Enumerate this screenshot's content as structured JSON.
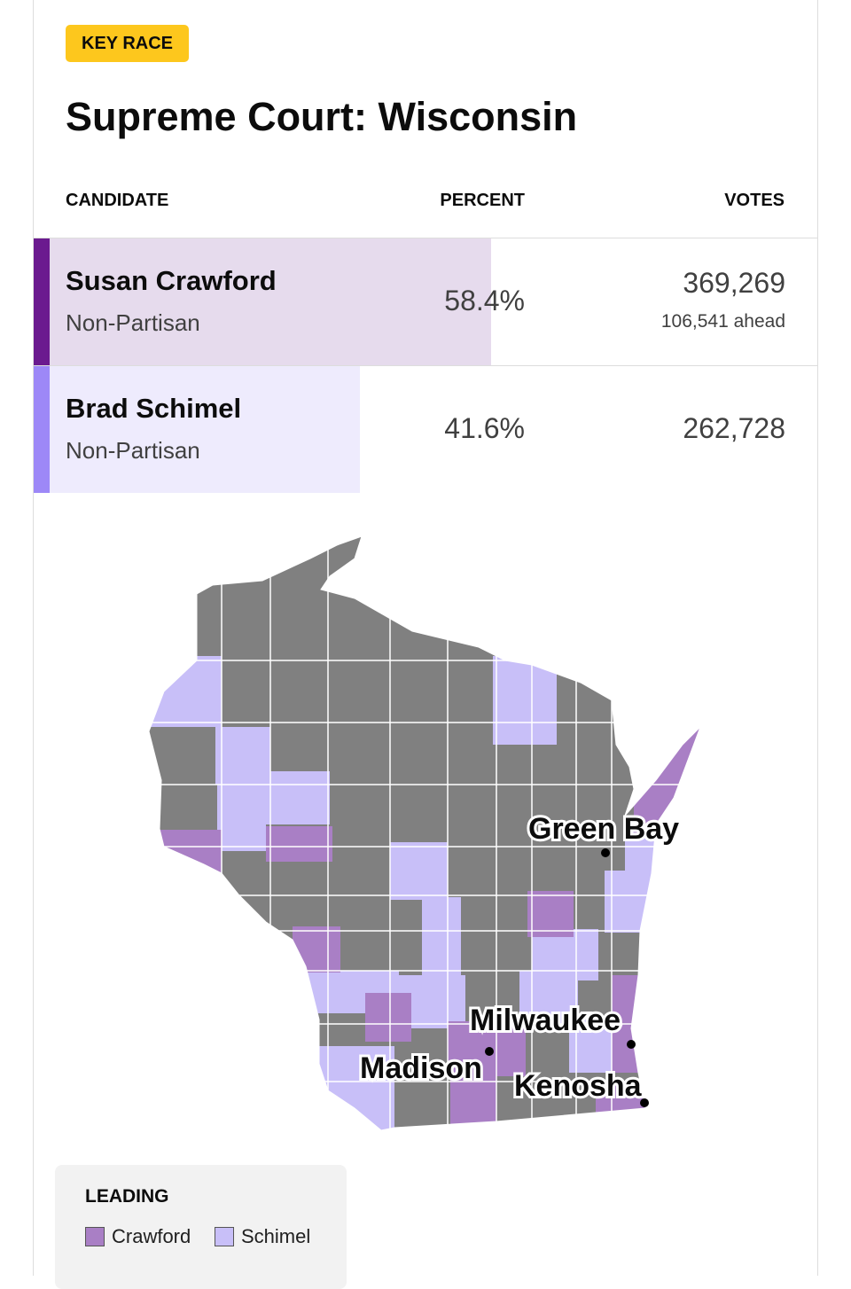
{
  "badge": "KEY RACE",
  "title": "Supreme Court: Wisconsin",
  "table": {
    "headers": [
      "CANDIDATE",
      "PERCENT",
      "VOTES"
    ],
    "rows": [
      {
        "name": "Susan Crawford",
        "party": "Non-Partisan",
        "percent": {
          "value": 58.4,
          "label": "58.4%"
        },
        "votes": "369,269",
        "margin": "106,541 ahead",
        "color": "#6b1a8f",
        "bar_color": "#e6dbed"
      },
      {
        "name": "Brad Schimel",
        "party": "Non-Partisan",
        "percent": {
          "value": 41.6,
          "label": "41.6%"
        },
        "votes": "262,728",
        "color": "#9d88f7",
        "bar_color": "#eeebfd"
      }
    ]
  },
  "map": {
    "cities": [
      "Green Bay",
      "Milwaukee",
      "Madison",
      "Kenosha"
    ],
    "legend": {
      "title": "LEADING",
      "items": [
        {
          "label": "Crawford",
          "color": "#a97fc5"
        },
        {
          "label": "Schimel",
          "color": "#c8bff8"
        }
      ]
    }
  }
}
